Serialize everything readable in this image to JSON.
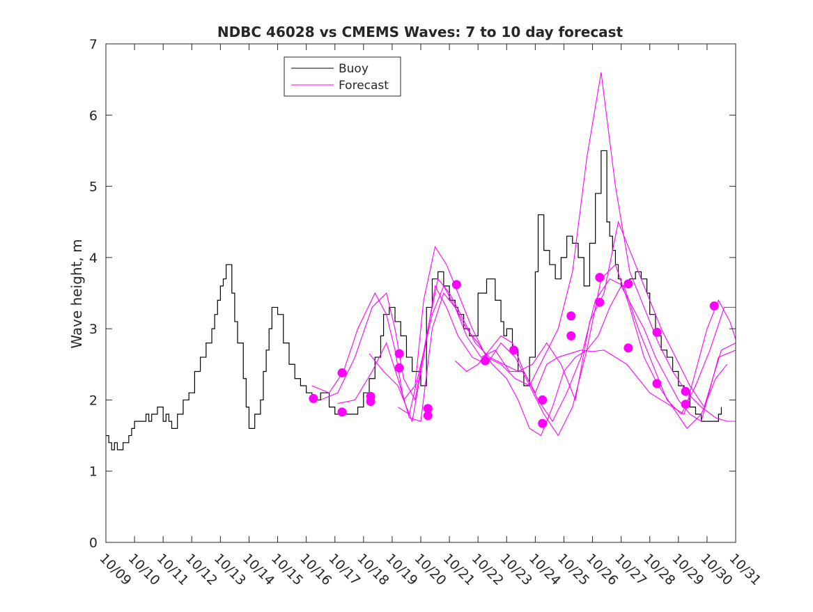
{
  "chart_data": {
    "type": "line",
    "title": "NDBC 46028 vs CMEMS Waves: 7 to 10 day forecast",
    "xlabel": "",
    "ylabel": "Wave height, m",
    "xlim": [
      0,
      22
    ],
    "ylim": [
      0,
      7
    ],
    "x_tick_labels": [
      "10/09",
      "10/10",
      "10/11",
      "10/12",
      "10/13",
      "10/14",
      "10/15",
      "10/16",
      "10/17",
      "10/18",
      "10/19",
      "10/20",
      "10/21",
      "10/22",
      "10/23",
      "10/24",
      "10/25",
      "10/26",
      "10/27",
      "10/28",
      "10/29",
      "10/30",
      "10/31"
    ],
    "y_ticks": [
      0,
      1,
      2,
      3,
      4,
      5,
      6,
      7
    ],
    "legend": {
      "position": "top-left",
      "entries": [
        "Buoy",
        "Forecast"
      ]
    },
    "colors": {
      "buoy": "#000000",
      "forecast": "#ff00ff",
      "axes": "#262626"
    },
    "series": [
      {
        "name": "Buoy",
        "x": [
          0.0,
          0.1,
          0.2,
          0.3,
          0.4,
          0.6,
          0.8,
          0.9,
          1.0,
          1.2,
          1.4,
          1.5,
          1.6,
          1.8,
          2.0,
          2.1,
          2.2,
          2.3,
          2.5,
          2.7,
          2.9,
          3.1,
          3.3,
          3.5,
          3.7,
          3.8,
          3.9,
          4.0,
          4.1,
          4.2,
          4.4,
          4.5,
          4.6,
          4.8,
          4.9,
          5.0,
          5.2,
          5.4,
          5.5,
          5.6,
          5.7,
          5.8,
          6.0,
          6.2,
          6.4,
          6.6,
          6.8,
          7.0,
          7.2,
          7.5,
          7.8,
          8.0,
          8.3,
          8.5,
          8.8,
          9.0,
          9.2,
          9.4,
          9.6,
          9.7,
          9.9,
          10.1,
          10.3,
          10.5,
          10.7,
          11.0,
          11.2,
          11.4,
          11.6,
          11.8,
          12.0,
          12.2,
          12.3,
          12.5,
          12.7,
          13.0,
          13.3,
          13.6,
          13.8,
          13.9,
          14.0,
          14.2,
          14.4,
          14.6,
          14.8,
          15.0,
          15.1,
          15.3,
          15.5,
          15.7,
          15.9,
          16.1,
          16.3,
          16.5,
          16.7,
          16.9,
          17.1,
          17.3,
          17.5,
          17.6,
          17.7,
          17.8,
          17.9,
          18.0,
          18.1,
          18.3,
          18.5,
          18.7,
          18.9,
          19.0,
          19.2,
          19.4,
          19.6,
          19.8,
          20.0,
          20.2,
          20.4,
          20.6,
          20.8,
          21.0,
          21.2,
          21.4,
          21.5
        ],
        "values": [
          1.5,
          1.4,
          1.3,
          1.4,
          1.3,
          1.4,
          1.5,
          1.6,
          1.7,
          1.7,
          1.8,
          1.7,
          1.8,
          1.9,
          1.7,
          1.8,
          1.7,
          1.6,
          1.8,
          2.0,
          2.1,
          2.4,
          2.6,
          2.8,
          3.0,
          3.2,
          3.4,
          3.6,
          3.7,
          3.9,
          3.5,
          3.1,
          2.8,
          2.3,
          1.9,
          1.6,
          1.8,
          2.0,
          2.4,
          2.7,
          3.0,
          3.3,
          3.2,
          2.8,
          2.5,
          2.3,
          2.2,
          2.1,
          2.0,
          2.1,
          1.9,
          1.8,
          1.8,
          1.8,
          1.9,
          2.1,
          2.3,
          2.6,
          2.9,
          3.2,
          3.3,
          3.1,
          2.9,
          2.6,
          2.4,
          2.2,
          3.3,
          3.7,
          3.8,
          3.6,
          3.4,
          3.3,
          3.2,
          3.0,
          2.9,
          3.5,
          3.7,
          3.4,
          3.1,
          2.9,
          3.0,
          2.7,
          2.4,
          2.2,
          2.6,
          3.8,
          4.6,
          4.1,
          3.9,
          3.7,
          4.0,
          4.3,
          4.2,
          4.0,
          3.6,
          4.2,
          4.9,
          5.5,
          4.5,
          4.3,
          4.1,
          3.9,
          3.7,
          3.6,
          3.6,
          3.7,
          3.8,
          3.7,
          3.5,
          3.2,
          2.9,
          2.7,
          2.6,
          2.4,
          2.2,
          2.1,
          1.9,
          1.8,
          1.7,
          1.7,
          1.7,
          1.8,
          1.9
        ]
      },
      {
        "name": "Forecast",
        "runs": [
          {
            "x": [
              7.2,
              7.8,
              8.3,
              8.8,
              9.4,
              9.8,
              10.1,
              10.4,
              10.8,
              11.1,
              11.5,
              11.9,
              12.3,
              12.8,
              13.3,
              13.8,
              14.3,
              14.8,
              15.3,
              15.8,
              16.3,
              16.8,
              17.3,
              17.8,
              18.3,
              18.8,
              19.3,
              19.8,
              20.3,
              20.8,
              21.3,
              21.7,
              22.0
            ],
            "values": [
              2.2,
              2.1,
              2.4,
              3.0,
              3.5,
              3.2,
              2.7,
              2.0,
              2.2,
              3.4,
              4.15,
              3.9,
              3.5,
              3.0,
              2.6,
              2.5,
              2.3,
              2.2,
              2.6,
              3.0,
              3.8,
              5.4,
              6.6,
              5.0,
              3.8,
              3.3,
              2.8,
              2.4,
              2.1,
              1.9,
              1.75,
              1.7,
              1.7
            ]
          },
          {
            "x": [
              7.5,
              8.1,
              8.7,
              9.3,
              9.8,
              10.1,
              10.4,
              10.8,
              11.2,
              11.6,
              12.0,
              12.4,
              12.9,
              13.4,
              13.9,
              14.4,
              14.9,
              15.4,
              15.9,
              16.4,
              16.9,
              17.4,
              17.9,
              18.4,
              18.9,
              19.4,
              19.9,
              20.4,
              20.9,
              21.5,
              22.0
            ],
            "values": [
              2.0,
              2.1,
              2.6,
              3.3,
              3.5,
              3.0,
              2.3,
              2.0,
              2.9,
              3.7,
              3.5,
              3.2,
              2.8,
              2.6,
              2.5,
              2.4,
              2.5,
              2.8,
              2.5,
              2.0,
              3.1,
              3.5,
              4.5,
              4.0,
              3.5,
              3.0,
              2.6,
              2.2,
              1.9,
              2.7,
              2.8
            ]
          },
          {
            "x": [
              8.1,
              8.7,
              9.3,
              9.8,
              10.2,
              10.6,
              11.0,
              11.4,
              11.8,
              12.2,
              12.6,
              13.0,
              13.5,
              14.0,
              14.4,
              14.8,
              15.2,
              15.6,
              16.0,
              16.4,
              16.8,
              17.2,
              17.6,
              18.0,
              18.4,
              18.8,
              19.2,
              19.6,
              20.0,
              20.4,
              20.8,
              21.4,
              22.0
            ],
            "values": [
              1.95,
              2.0,
              2.4,
              2.8,
              2.3,
              1.75,
              1.7,
              3.0,
              3.5,
              3.3,
              3.0,
              2.8,
              2.5,
              2.3,
              2.0,
              1.6,
              1.5,
              1.9,
              2.4,
              2.6,
              2.7,
              2.9,
              3.3,
              3.6,
              3.3,
              3.0,
              2.6,
              2.3,
              2.0,
              1.8,
              1.7,
              2.6,
              2.7
            ]
          },
          {
            "x": [
              9.2,
              9.7,
              10.2,
              10.7,
              11.1,
              11.5,
              11.9,
              12.3,
              12.8,
              13.3,
              13.8,
              14.3,
              14.8,
              15.3,
              15.8,
              16.3,
              16.8,
              17.3,
              17.8,
              18.3,
              18.8,
              19.3,
              19.8,
              20.3,
              20.8,
              21.3,
              21.7
            ],
            "values": [
              2.65,
              2.4,
              2.2,
              1.7,
              2.6,
              3.6,
              3.3,
              2.9,
              2.6,
              2.5,
              2.8,
              2.6,
              2.2,
              1.8,
              1.5,
              1.9,
              2.7,
              3.7,
              3.9,
              3.3,
              2.6,
              2.2,
              1.9,
              1.6,
              1.8,
              2.3,
              2.5
            ]
          },
          {
            "x": [
              10.2,
              10.6,
              11.0,
              11.4,
              11.8,
              12.2,
              12.6,
              13.1,
              13.6,
              14.1,
              14.6,
              15.1,
              15.6,
              16.1,
              16.6,
              17.1,
              17.6,
              18.1,
              18.6,
              19.1,
              19.6,
              20.1,
              20.6,
              21.1,
              21.6,
              22.0
            ],
            "values": [
              1.9,
              1.8,
              2.5,
              3.2,
              3.6,
              3.3,
              2.9,
              2.6,
              2.7,
              2.4,
              2.4,
              2.0,
              1.7,
              2.1,
              2.6,
              3.4,
              3.7,
              3.6,
              3.0,
              2.5,
              2.0,
              1.8,
              2.2,
              2.7,
              3.3,
              3.3
            ]
          },
          {
            "x": [
              12.2,
              12.6,
              13.0,
              13.4,
              13.8,
              14.2,
              14.6,
              15.0,
              15.4,
              15.8,
              16.2,
              16.6,
              17.0,
              17.4,
              17.8,
              18.2,
              18.6,
              19.0,
              19.4,
              19.8,
              20.2,
              20.6,
              21.0,
              21.4,
              21.8,
              22.0
            ],
            "values": [
              2.55,
              2.4,
              2.5,
              2.7,
              2.9,
              2.8,
              2.4,
              2.1,
              2.5,
              2.6,
              2.65,
              2.7,
              2.68,
              2.7,
              2.6,
              2.5,
              2.3,
              2.1,
              2.0,
              1.9,
              1.8,
              2.4,
              3.0,
              3.4,
              3.1,
              2.85
            ]
          }
        ],
        "markers": {
          "x": [
            7.25,
            8.25,
            8.25,
            9.25,
            9.25,
            10.25,
            10.25,
            11.25,
            11.25,
            12.25,
            13.25,
            14.25,
            15.25,
            15.25,
            16.25,
            16.25,
            17.25,
            17.25,
            18.25,
            18.25,
            19.25,
            19.25,
            20.25,
            20.25,
            21.25
          ],
          "values": [
            2.02,
            2.38,
            1.83,
            2.05,
            1.98,
            2.45,
            2.65,
            1.78,
            1.88,
            3.62,
            2.55,
            2.7,
            1.67,
            2.0,
            2.9,
            3.18,
            3.37,
            3.72,
            2.73,
            3.63,
            2.23,
            2.95,
            1.94,
            2.12,
            3.32
          ]
        }
      }
    ]
  }
}
